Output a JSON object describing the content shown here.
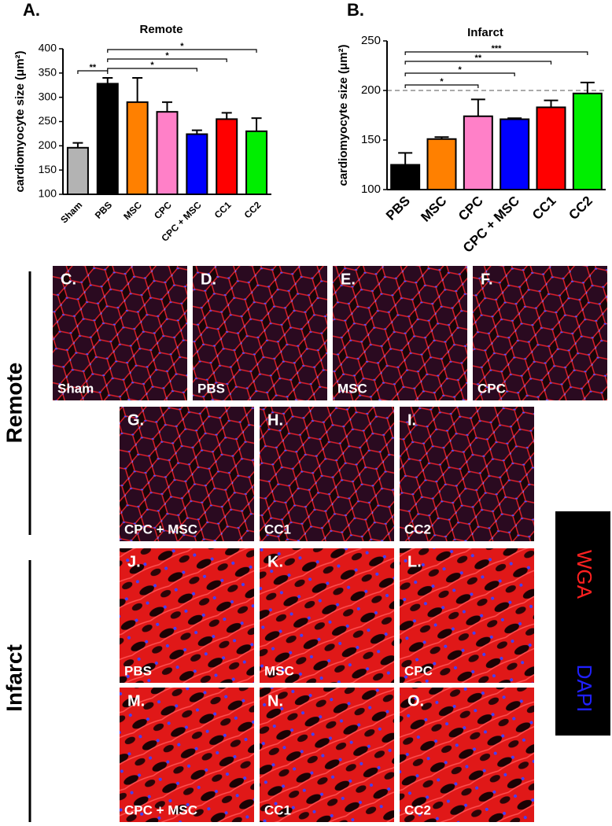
{
  "chart_data": [
    {
      "type": "bar",
      "panel": "A.",
      "title": "Remote",
      "y_label": "cardiomyocyte size (μm²)",
      "categories": [
        "Sham",
        "PBS",
        "MSC",
        "CPC",
        "CPC + MSC",
        "CC1",
        "CC2"
      ],
      "values": [
        196,
        328,
        290,
        270,
        224,
        255,
        230
      ],
      "errors": [
        10,
        12,
        50,
        20,
        8,
        13,
        27
      ],
      "colors": [
        "#b3b3b3",
        "#000000",
        "#ff8000",
        "#ff80c8",
        "#0000ff",
        "#ff0000",
        "#00ee00"
      ],
      "ylim": [
        100,
        400
      ],
      "yticks": [
        100,
        150,
        200,
        250,
        300,
        350,
        400
      ],
      "comparisons": [
        {
          "groups": [
            "PBS",
            "CC2"
          ],
          "label": "*"
        },
        {
          "groups": [
            "PBS",
            "CC1"
          ],
          "label": "*"
        },
        {
          "groups": [
            "PBS",
            "CPC + MSC"
          ],
          "label": "*"
        },
        {
          "groups": [
            "Sham",
            "PBS"
          ],
          "label": "**"
        }
      ]
    },
    {
      "type": "bar",
      "panel": "B.",
      "title": "Infarct",
      "y_label": "cardiomyocyte size (μm²)",
      "categories": [
        "PBS",
        "MSC",
        "CPC",
        "CPC + MSC",
        "CC1",
        "CC2"
      ],
      "values": [
        125,
        151,
        174,
        171,
        183,
        197
      ],
      "errors": [
        12,
        2,
        17,
        1,
        7,
        11
      ],
      "colors": [
        "#000000",
        "#ff8000",
        "#ff80c8",
        "#0000ff",
        "#ff0000",
        "#00ee00"
      ],
      "ylim": [
        100,
        250
      ],
      "yticks": [
        100,
        150,
        200,
        250
      ],
      "reference_line": 200,
      "comparisons": [
        {
          "groups": [
            "PBS",
            "CC2"
          ],
          "label": "***"
        },
        {
          "groups": [
            "PBS",
            "CC1"
          ],
          "label": "**"
        },
        {
          "groups": [
            "PBS",
            "CPC + MSC"
          ],
          "label": "*"
        },
        {
          "groups": [
            "PBS",
            "CPC"
          ],
          "label": "*"
        }
      ]
    }
  ],
  "images": {
    "rows": [
      "Remote",
      "Infarct"
    ],
    "panels": [
      {
        "letter": "C.",
        "caption": "Sham"
      },
      {
        "letter": "D.",
        "caption": "PBS"
      },
      {
        "letter": "E.",
        "caption": "MSC"
      },
      {
        "letter": "F.",
        "caption": "CPC"
      },
      {
        "letter": "G.",
        "caption": "CPC + MSC"
      },
      {
        "letter": "H.",
        "caption": "CC1"
      },
      {
        "letter": "I.",
        "caption": "CC2"
      },
      {
        "letter": "J.",
        "caption": "PBS"
      },
      {
        "letter": "K.",
        "caption": "MSC"
      },
      {
        "letter": "L.",
        "caption": "CPC"
      },
      {
        "letter": "M.",
        "caption": "CPC + MSC"
      },
      {
        "letter": "N.",
        "caption": "CC1"
      },
      {
        "letter": "O.",
        "caption": "CC2"
      }
    ],
    "legend": [
      {
        "label": "WGA",
        "color": "#ff2020"
      },
      {
        "label": "DAPI",
        "color": "#2020ff"
      }
    ]
  }
}
